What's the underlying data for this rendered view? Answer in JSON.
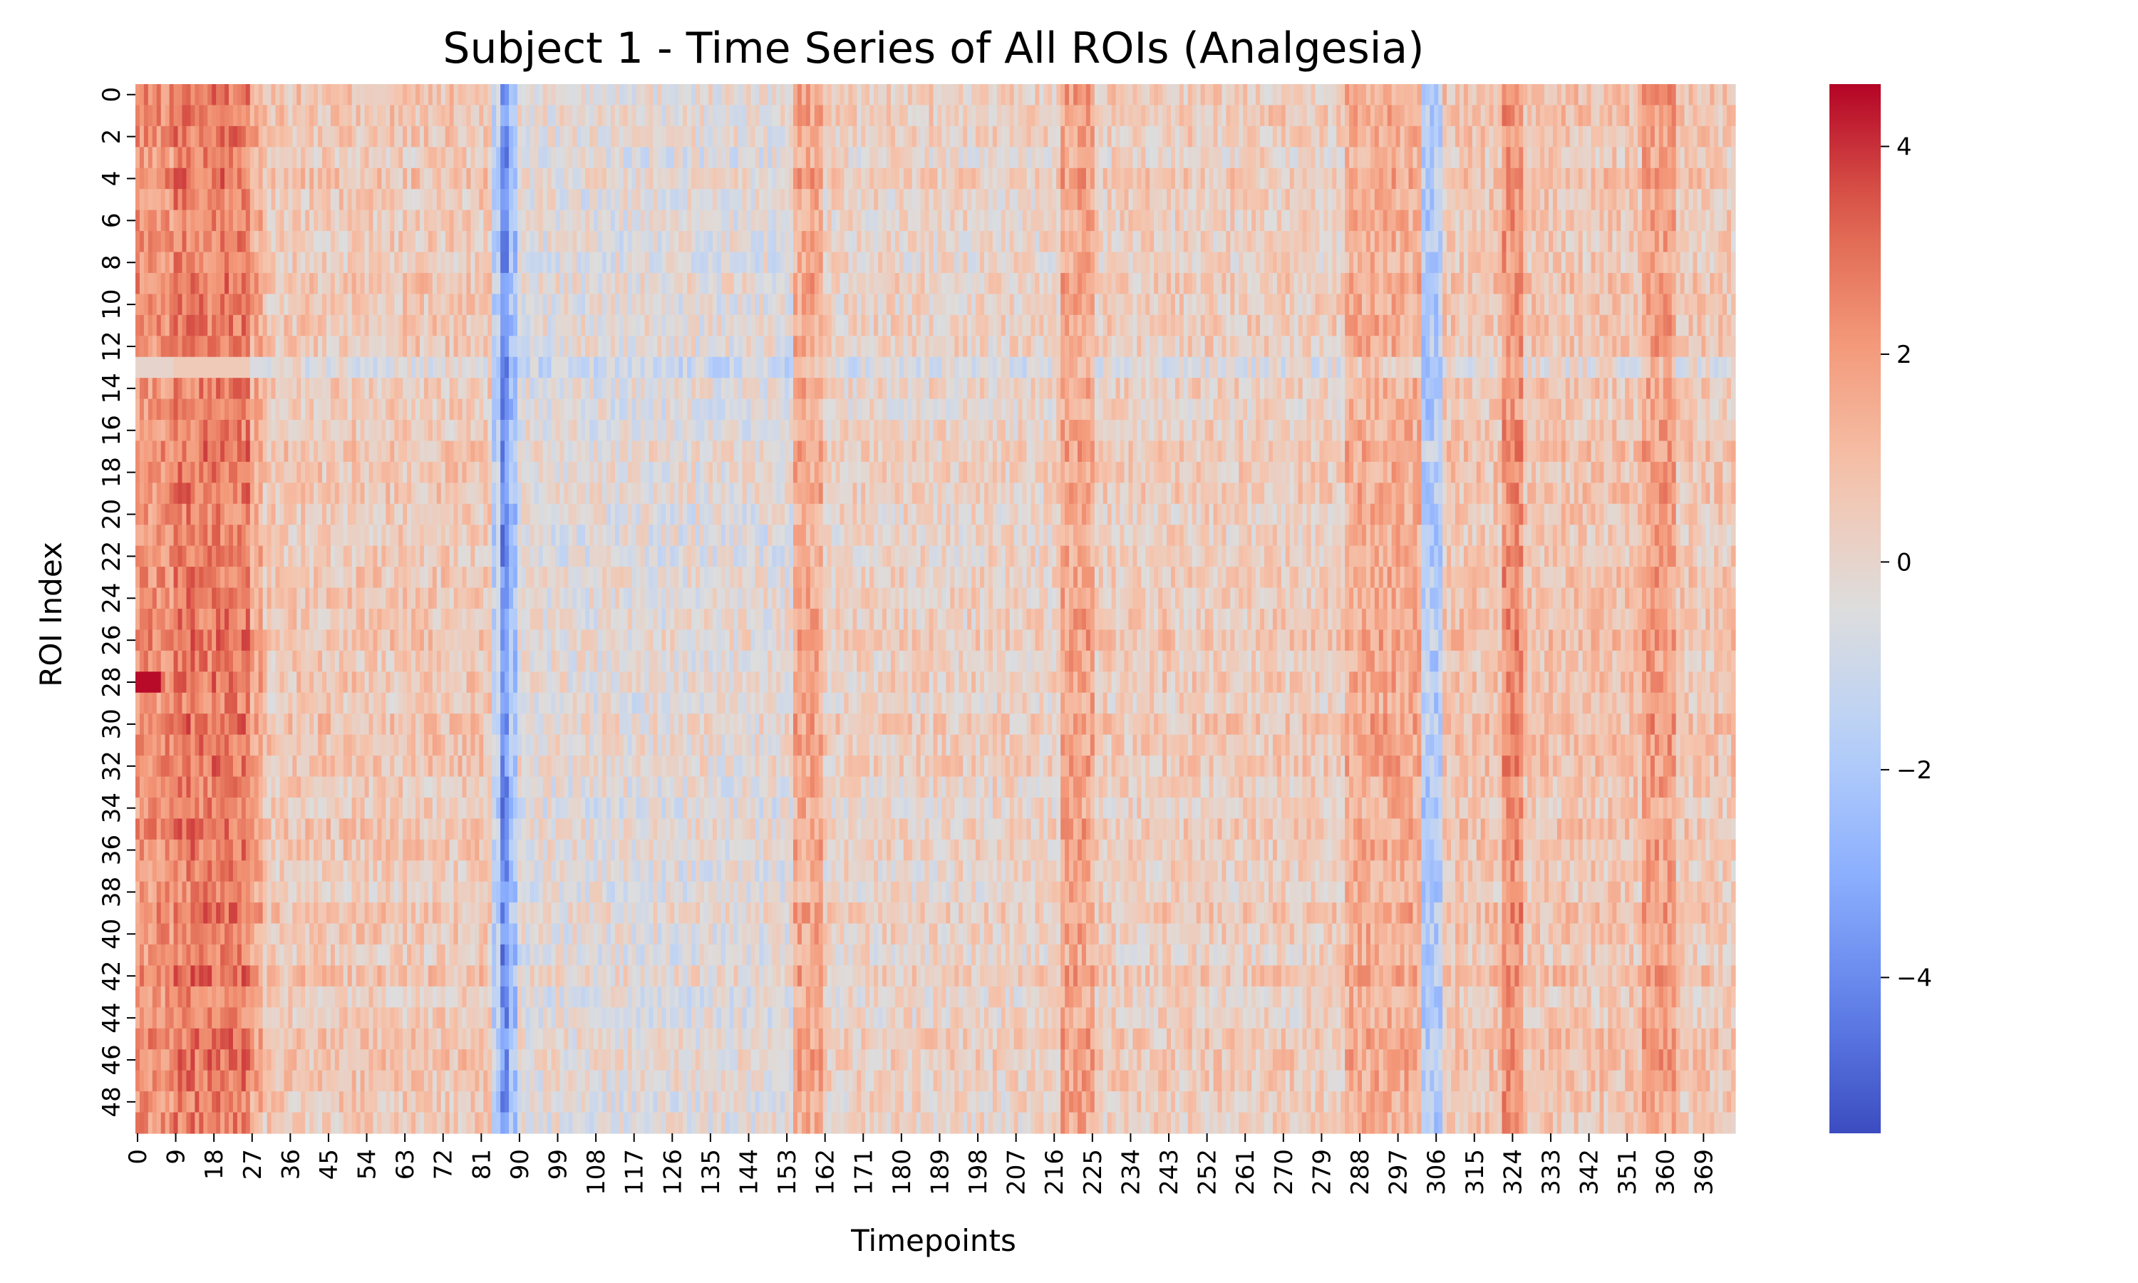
{
  "chart_data": {
    "type": "heatmap",
    "title": "Subject 1 - Time Series of All ROIs (Analgesia)",
    "xlabel": "Timepoints",
    "ylabel": "ROI Index",
    "n_rows": 50,
    "n_cols": 377,
    "xticks": [
      0,
      9,
      18,
      27,
      36,
      45,
      54,
      63,
      72,
      81,
      90,
      99,
      108,
      117,
      126,
      135,
      144,
      153,
      162,
      171,
      180,
      189,
      198,
      207,
      216,
      225,
      234,
      243,
      252,
      261,
      270,
      279,
      288,
      297,
      306,
      315,
      324,
      333,
      342,
      351,
      360,
      369
    ],
    "yticks": [
      0,
      2,
      4,
      6,
      8,
      10,
      12,
      14,
      16,
      18,
      20,
      22,
      24,
      26,
      28,
      30,
      32,
      34,
      36,
      38,
      40,
      42,
      44,
      46,
      48
    ],
    "colormap": "coolwarm",
    "vmin": -5.5,
    "vmax": 4.6,
    "colorbar_ticks": [
      4,
      2,
      0,
      -2,
      -4
    ],
    "colorbar_tick_labels": [
      "4",
      "2",
      "0",
      "−2",
      "−4"
    ],
    "temporal_profile": [
      {
        "t0": 0,
        "t1": 9,
        "value": 2.2
      },
      {
        "t0": 9,
        "t1": 27,
        "value": 2.7
      },
      {
        "t0": 27,
        "t1": 30,
        "value": 1.6
      },
      {
        "t0": 30,
        "t1": 84,
        "value": 0.6
      },
      {
        "t0": 84,
        "t1": 86,
        "value": -1.5
      },
      {
        "t0": 86,
        "t1": 88,
        "value": -3.8
      },
      {
        "t0": 88,
        "t1": 90,
        "value": -2.2
      },
      {
        "t0": 90,
        "t1": 155,
        "value": -0.3
      },
      {
        "t0": 155,
        "t1": 162,
        "value": 1.6
      },
      {
        "t0": 162,
        "t1": 218,
        "value": 0.2
      },
      {
        "t0": 218,
        "t1": 226,
        "value": 1.7
      },
      {
        "t0": 226,
        "t1": 285,
        "value": 0.4
      },
      {
        "t0": 285,
        "t1": 303,
        "value": 1.5
      },
      {
        "t0": 303,
        "t1": 308,
        "value": -1.8
      },
      {
        "t0": 308,
        "t1": 322,
        "value": 0.7
      },
      {
        "t0": 322,
        "t1": 327,
        "value": 2.3
      },
      {
        "t0": 327,
        "t1": 355,
        "value": 0.7
      },
      {
        "t0": 355,
        "t1": 363,
        "value": 1.9
      },
      {
        "t0": 363,
        "t1": 377,
        "value": 0.6
      }
    ],
    "notable_rows": [
      {
        "roi": 13,
        "note": "below-average row, values near -1 to 0 across most timepoints"
      },
      {
        "roi": 28,
        "note": "strongest early values, about 4.5 at timepoints 0-5"
      }
    ]
  }
}
